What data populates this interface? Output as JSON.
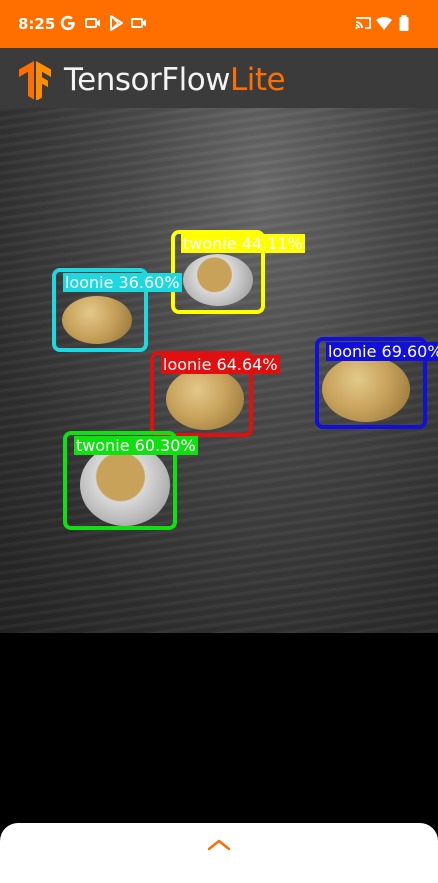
{
  "status_bar": {
    "time": "8:25",
    "left_icons": [
      "google-icon",
      "video-camera-icon",
      "play-store-icon",
      "video-camera-icon"
    ],
    "right_icons": [
      "cast-icon",
      "wifi-icon",
      "battery-icon"
    ],
    "color": "#FF6F00"
  },
  "app_bar": {
    "title_main": "TensorFlow",
    "title_accent": "Lite",
    "logo": "tensorflow-logo-icon",
    "accent_color": "#FF6F00"
  },
  "detections": [
    {
      "label": "twonie 44.11%",
      "color": "#FFFF00",
      "text_color": "#ffffff"
    },
    {
      "label": "loonie 36.60%",
      "color": "#1ED8E0",
      "text_color": "#ffffff"
    },
    {
      "label": "loonie 64.64%",
      "color": "#E01010",
      "text_color": "#ffffff"
    },
    {
      "label": "loonie 69.60%",
      "color": "#1010D8",
      "text_color": "#ffffff"
    },
    {
      "label": "twonie 60.30%",
      "color": "#10E010",
      "text_color": "#ffffff"
    }
  ],
  "bottom_sheet": {
    "handle_icon": "chevron-up-icon"
  }
}
